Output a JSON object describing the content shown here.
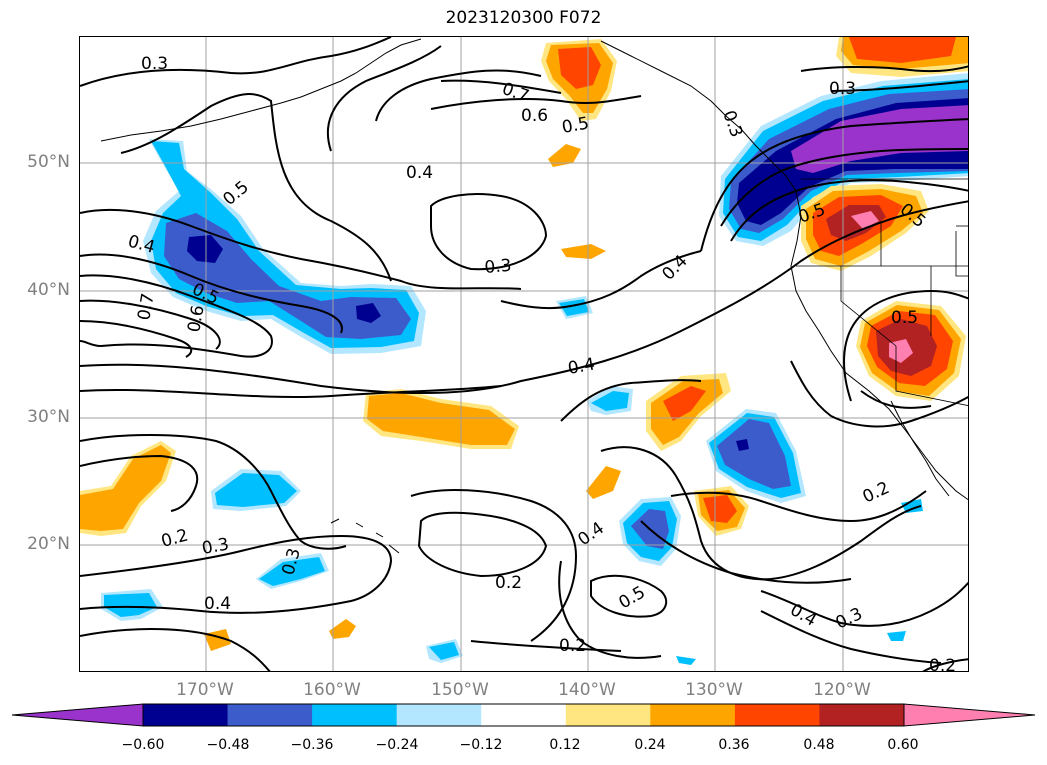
{
  "title": "2023120300 F072",
  "lat_labels": [
    "50°N",
    "40°N",
    "30°N",
    "20°N"
  ],
  "lon_labels": [
    "170°W",
    "160°W",
    "150°W",
    "140°W",
    "130°W",
    "120°W"
  ],
  "colorbar": {
    "ticks": [
      "−0.60",
      "−0.48",
      "−0.36",
      "−0.24",
      "−0.12",
      "0.12",
      "0.24",
      "0.36",
      "0.48",
      "0.60"
    ],
    "colors": [
      "#9933cc",
      "#000090",
      "#3d5ccc",
      "#00bfff",
      "#b3e6ff",
      "#ffffff",
      "#ffe680",
      "#ffa500",
      "#ff4500",
      "#b22222",
      "#ff80b0"
    ]
  },
  "contour_labels": [
    {
      "text": "0.3"
    },
    {
      "text": "0.7"
    },
    {
      "text": "0.6"
    },
    {
      "text": "0.5"
    },
    {
      "text": "0.3"
    },
    {
      "text": "0.4"
    },
    {
      "text": "0.5"
    },
    {
      "text": "0.4"
    },
    {
      "text": "0.5"
    },
    {
      "text": "0.7"
    },
    {
      "text": "0.6"
    },
    {
      "text": "0.3"
    },
    {
      "text": "0.4"
    },
    {
      "text": "0.4"
    },
    {
      "text": "0.5"
    },
    {
      "text": "0.3"
    },
    {
      "text": "0.5"
    },
    {
      "text": "0.5"
    },
    {
      "text": "0.2"
    },
    {
      "text": "0.3"
    },
    {
      "text": "0.3"
    },
    {
      "text": "0.4"
    },
    {
      "text": "0.2"
    },
    {
      "text": "0.4"
    },
    {
      "text": "0.5"
    },
    {
      "text": "0.2"
    },
    {
      "text": "0.4"
    },
    {
      "text": "0.3"
    },
    {
      "text": "0.2"
    },
    {
      "text": "0.2"
    }
  ]
}
